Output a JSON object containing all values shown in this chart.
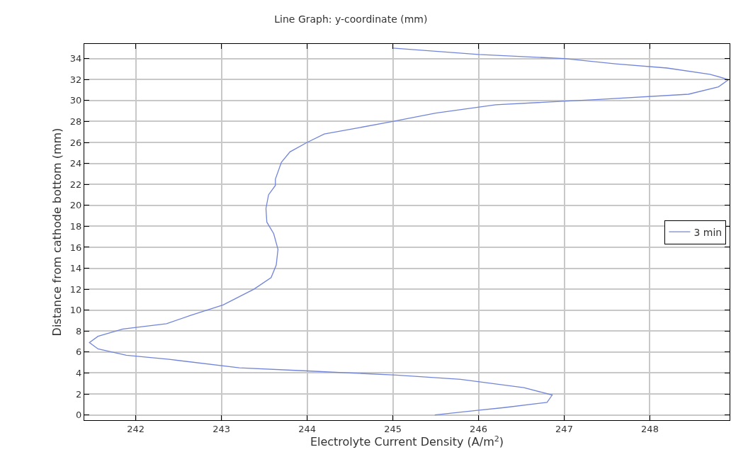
{
  "chart_data": {
    "type": "line",
    "title": "Line Graph: y-coordinate (mm)",
    "xlabel": "Electrolyte Current Density (A/m$^{2}$)",
    "ylabel": "Distance from cathode bottom (mm)",
    "series": [
      {
        "name": "3 min",
        "color": "#7285d8",
        "x": [
          245.0,
          246.0,
          247.0,
          247.6,
          248.2,
          248.7,
          248.92,
          248.8,
          248.45,
          247.4,
          246.2,
          245.5,
          245.0,
          244.6,
          244.2,
          244.0,
          243.8,
          243.7,
          243.63,
          243.63,
          243.55,
          243.52,
          243.53,
          243.61,
          243.66,
          243.64,
          243.58,
          243.38,
          243.02,
          242.64,
          242.36,
          241.85,
          241.56,
          241.46,
          241.56,
          241.89,
          242.39,
          243.21,
          244.0,
          245.04,
          245.79,
          246.53,
          246.86,
          246.8,
          246.3,
          245.95,
          245.49
        ],
        "values": [
          35,
          34.4,
          34.0,
          33.5,
          33.1,
          32.5,
          32.0,
          31.3,
          30.6,
          30.1,
          29.6,
          28.8,
          28.0,
          27.4,
          26.8,
          26.0,
          25.1,
          24.1,
          22.5,
          21.9,
          21.0,
          19.7,
          18.4,
          17.3,
          15.8,
          14.3,
          13.1,
          12.0,
          10.5,
          9.5,
          8.7,
          8.2,
          7.5,
          6.9,
          6.3,
          5.7,
          5.3,
          4.5,
          4.2,
          3.8,
          3.4,
          2.6,
          1.9,
          1.2,
          0.7,
          0.4,
          0.0
        ]
      }
    ],
    "xlim": [
      241.4,
      248.93
    ],
    "xticks": [
      242,
      243,
      244,
      245,
      246,
      247,
      248
    ],
    "ylim": [
      -0.5,
      35.4
    ],
    "yticks": [
      0,
      2,
      4,
      6,
      8,
      10,
      12,
      14,
      16,
      18,
      20,
      22,
      24,
      26,
      28,
      30,
      32,
      34
    ],
    "grid": true,
    "legend": "right",
    "marker": "none",
    "line_style": "solid"
  }
}
